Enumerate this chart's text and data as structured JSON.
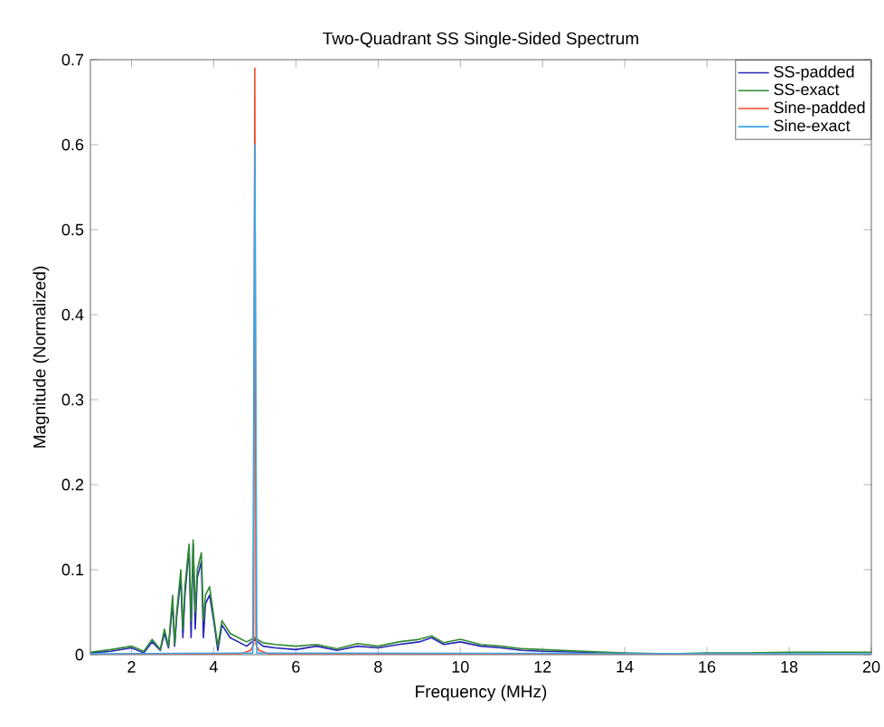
{
  "chart_data": {
    "type": "line",
    "title": "Two-Quadrant SS Single-Sided Spectrum",
    "xlabel": "Frequency (MHz)",
    "ylabel": "Magnitude (Normalized)",
    "xlim": [
      1,
      20
    ],
    "ylim": [
      0,
      0.7
    ],
    "xticks": [
      2,
      4,
      6,
      8,
      10,
      12,
      14,
      16,
      18,
      20
    ],
    "yticks": [
      0,
      0.1,
      0.2,
      0.3,
      0.4,
      0.5,
      0.6,
      0.7
    ],
    "legend": "top right",
    "grid": false,
    "marker": "none",
    "line_style": "solid",
    "series": [
      {
        "name": "SS-padded",
        "color": "#2424b8",
        "x": [
          1,
          1.5,
          2,
          2.3,
          2.5,
          2.7,
          2.8,
          2.9,
          3.0,
          3.05,
          3.1,
          3.2,
          3.25,
          3.3,
          3.4,
          3.45,
          3.5,
          3.55,
          3.6,
          3.7,
          3.75,
          3.8,
          3.9,
          4.0,
          4.1,
          4.2,
          4.4,
          4.6,
          4.8,
          5.0,
          5.2,
          5.5,
          6,
          6.5,
          7,
          7.5,
          8,
          8.5,
          9,
          9.3,
          9.6,
          10,
          10.5,
          11,
          11.5,
          12,
          13,
          14
        ],
        "values": [
          0.002,
          0.004,
          0.008,
          0.002,
          0.015,
          0.005,
          0.025,
          0.008,
          0.06,
          0.01,
          0.045,
          0.09,
          0.02,
          0.07,
          0.125,
          0.02,
          0.13,
          0.03,
          0.09,
          0.11,
          0.02,
          0.06,
          0.07,
          0.04,
          0.005,
          0.035,
          0.02,
          0.015,
          0.01,
          0.018,
          0.01,
          0.008,
          0.006,
          0.01,
          0.005,
          0.01,
          0.008,
          0.012,
          0.015,
          0.02,
          0.012,
          0.015,
          0.01,
          0.008,
          0.005,
          0.004,
          0.003,
          0.001
        ]
      },
      {
        "name": "SS-exact",
        "color": "#2f8a2f",
        "x": [
          1,
          1.5,
          2,
          2.3,
          2.5,
          2.7,
          2.8,
          2.9,
          3.0,
          3.05,
          3.1,
          3.2,
          3.25,
          3.3,
          3.4,
          3.45,
          3.5,
          3.55,
          3.6,
          3.7,
          3.75,
          3.8,
          3.9,
          4.0,
          4.1,
          4.2,
          4.4,
          4.6,
          4.8,
          5.0,
          5.2,
          5.5,
          6,
          6.5,
          7,
          7.5,
          8,
          8.5,
          9,
          9.3,
          9.6,
          10,
          10.5,
          11,
          11.5,
          12,
          13,
          14,
          15,
          16,
          17,
          18,
          19,
          20
        ],
        "values": [
          0.003,
          0.006,
          0.01,
          0.004,
          0.018,
          0.006,
          0.03,
          0.01,
          0.07,
          0.012,
          0.05,
          0.1,
          0.03,
          0.08,
          0.13,
          0.04,
          0.135,
          0.05,
          0.1,
          0.12,
          0.04,
          0.07,
          0.08,
          0.045,
          0.01,
          0.04,
          0.025,
          0.02,
          0.015,
          0.02,
          0.014,
          0.012,
          0.01,
          0.012,
          0.007,
          0.013,
          0.01,
          0.015,
          0.018,
          0.022,
          0.014,
          0.018,
          0.012,
          0.01,
          0.007,
          0.006,
          0.004,
          0.002,
          0.001,
          0.002,
          0.002,
          0.003,
          0.003,
          0.003
        ]
      },
      {
        "name": "Sine-padded",
        "color": "#f04a2a",
        "x": [
          1,
          4.6,
          4.9,
          4.97,
          5.0,
          5.03,
          5.1,
          5.4,
          20
        ],
        "values": [
          0.0,
          0.0,
          0.005,
          0.012,
          0.69,
          0.012,
          0.005,
          0.0,
          0.0
        ]
      },
      {
        "name": "Sine-exact",
        "color": "#3aa6e6",
        "x": [
          1,
          4.95,
          5.0,
          5.05,
          20
        ],
        "values": [
          0.001,
          0.002,
          0.6,
          0.002,
          0.001
        ]
      }
    ]
  }
}
